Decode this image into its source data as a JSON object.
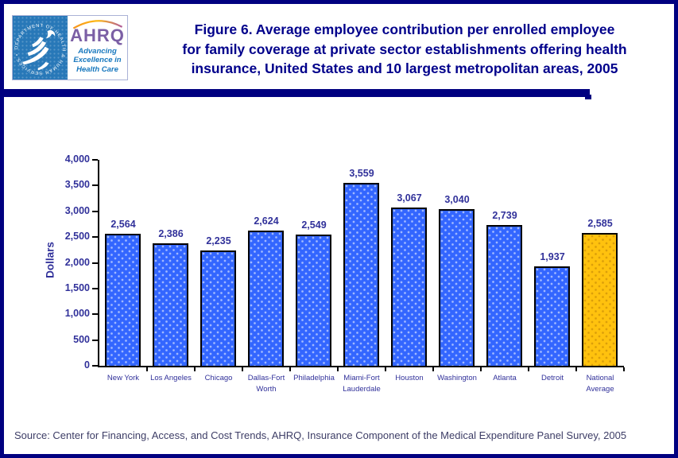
{
  "header": {
    "title_lines": [
      "Figure 6. Average employee contribution per enrolled employee",
      "for family coverage at private sector establishments offering health",
      "insurance, United States and 10 largest metropolitan areas, 2005"
    ]
  },
  "logo": {
    "acronym": "AHRQ",
    "tagline": "Advancing Excellence in Health Care",
    "seal_text": "DEPARTMENT OF HEALTH & HUMAN SERVICES • USA"
  },
  "chart_data": {
    "type": "bar",
    "title": "Figure 6. Average employee contribution per enrolled employee for family coverage at private sector establishments offering health insurance, United States and 10 largest metropolitan areas, 2005",
    "categories": [
      "New York",
      "Los Angeles",
      "Chicago",
      "Dallas-Fort Worth",
      "Philadelphia",
      "Miami-Fort Lauderdale",
      "Houston",
      "Washington",
      "Atlanta",
      "Detroit",
      "National Average"
    ],
    "values": [
      2564,
      2386,
      2235,
      2624,
      2549,
      3559,
      3067,
      3040,
      2739,
      1937,
      2585
    ],
    "value_labels": [
      "2,564",
      "2,386",
      "2,235",
      "2,624",
      "2,549",
      "3,559",
      "3,067",
      "3,040",
      "2,739",
      "1,937",
      "2,585"
    ],
    "xlabel": "",
    "ylabel": "Dollars",
    "ylim": [
      0,
      4000
    ],
    "ytick_step": 500,
    "ytick_labels": [
      "0",
      "500",
      "1,000",
      "1,500",
      "2,000",
      "2,500",
      "3,000",
      "3,500",
      "4,000"
    ],
    "grid": false,
    "legend": false,
    "bar_color_default": "#3366FF",
    "bar_color_highlight": "#FFC20E",
    "highlight_index": 10
  },
  "footer": {
    "source": "Source: Center for Financing, Access, and Cost Trends, AHRQ, Insurance Component of the Medical Expenditure Panel Survey, 2005"
  }
}
